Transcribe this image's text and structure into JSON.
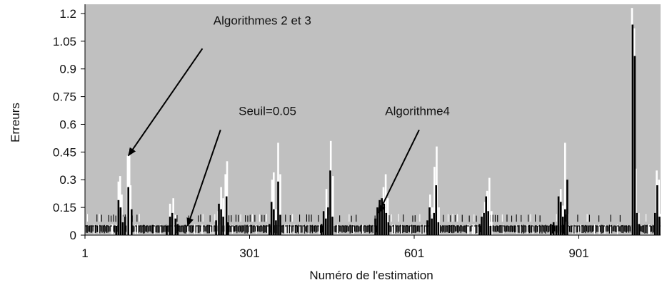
{
  "chart_data": {
    "type": "bar",
    "xlabel": "Numéro de l'estimation",
    "ylabel": "Erreurs",
    "xlim": [
      1,
      1050
    ],
    "ylim": [
      0,
      1.25
    ],
    "x_ticks": [
      "1",
      "301",
      "601",
      "901"
    ],
    "x_tick_values": [
      1,
      301,
      601,
      901
    ],
    "y_ticks": [
      "0",
      "0.15",
      "0.3",
      "0.45",
      "0.6",
      "0.75",
      "0.9",
      "1.05",
      "1.2"
    ],
    "y_tick_values": [
      0,
      0.15,
      0.3,
      0.45,
      0.6,
      0.75,
      0.9,
      1.05,
      1.2
    ],
    "grid": false,
    "background": "#c0c0c0",
    "series": [
      {
        "color": "#ffffff",
        "x": [
          62,
          65,
          68,
          72,
          79,
          82,
          84,
          156,
          162,
          166,
          244,
          249,
          253,
          257,
          260,
          342,
          345,
          349,
          353,
          357,
          437,
          441,
          445,
          449,
          453,
          537,
          541,
          545,
          549,
          553,
          630,
          634,
          638,
          642,
          646,
          726,
          730,
          734,
          738,
          742,
          864,
          868,
          872,
          876,
          880,
          998,
          1002,
          1005,
          1010,
          1043,
          1047
        ],
        "values": [
          0.29,
          0.32,
          0.22,
          0.1,
          0.43,
          0.46,
          0.27,
          0.17,
          0.2,
          0.11,
          0.13,
          0.26,
          0.2,
          0.33,
          0.4,
          0.3,
          0.34,
          0.14,
          0.5,
          0.33,
          0.13,
          0.25,
          0.11,
          0.51,
          0.32,
          0.13,
          0.18,
          0.26,
          0.33,
          0.2,
          0.22,
          0.15,
          0.37,
          0.48,
          0.15,
          0.12,
          0.18,
          0.24,
          0.31,
          0.13,
          0.19,
          0.25,
          0.16,
          0.5,
          0.1,
          1.23,
          1.12,
          0.36,
          0.12,
          0.35,
          0.3
        ]
      },
      {
        "color": "#000000",
        "x": [
          58,
          62,
          66,
          70,
          74,
          80,
          86,
          150,
          156,
          160,
          166,
          170,
          240,
          245,
          249,
          253,
          259,
          262,
          337,
          341,
          345,
          349,
          353,
          357,
          432,
          436,
          440,
          444,
          448,
          452,
          530,
          534,
          538,
          542,
          546,
          550,
          554,
          625,
          629,
          633,
          637,
          641,
          645,
          720,
          724,
          728,
          732,
          736,
          740,
          850,
          855,
          860,
          864,
          868,
          872,
          876,
          880,
          999,
          1003,
          1007,
          1011,
          1040,
          1044,
          1048
        ],
        "values": [
          0.05,
          0.19,
          0.15,
          0.07,
          0.1,
          0.26,
          0.14,
          0.05,
          0.1,
          0.12,
          0.09,
          0.06,
          0.08,
          0.17,
          0.14,
          0.1,
          0.21,
          0.07,
          0.06,
          0.18,
          0.14,
          0.08,
          0.29,
          0.11,
          0.06,
          0.13,
          0.09,
          0.15,
          0.35,
          0.1,
          0.09,
          0.15,
          0.19,
          0.2,
          0.17,
          0.12,
          0.07,
          0.08,
          0.15,
          0.09,
          0.12,
          0.27,
          0.07,
          0.06,
          0.1,
          0.12,
          0.21,
          0.13,
          0.05,
          0.06,
          0.07,
          0.05,
          0.21,
          0.18,
          0.1,
          0.14,
          0.3,
          1.14,
          0.97,
          0.12,
          0.06,
          0.12,
          0.27,
          0.1
        ]
      }
    ],
    "annotations": [
      {
        "text": "Algorithmes 2 et 3",
        "x": 235,
        "y": 1.14,
        "arrow_from": [
          215,
          1.01
        ],
        "arrow_to": [
          80,
          0.43
        ]
      },
      {
        "text": "Seuil=0.05",
        "x": 281,
        "y": 0.65,
        "arrow_from": [
          248,
          0.57
        ],
        "arrow_to": [
          188,
          0.05
        ]
      },
      {
        "text": "Algorithme4",
        "x": 548,
        "y": 0.65,
        "arrow_from": [
          610,
          0.57
        ],
        "arrow_to": [
          536,
          0.12
        ]
      }
    ]
  }
}
